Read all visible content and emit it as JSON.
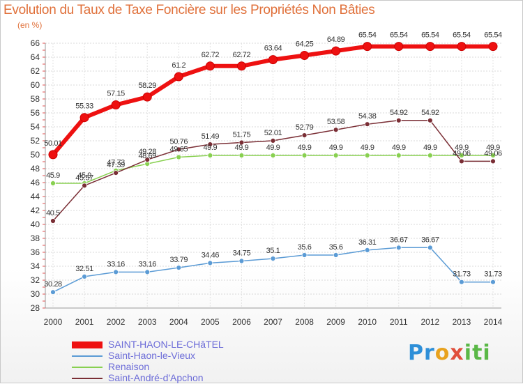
{
  "chart_data": {
    "type": "line",
    "title": "Evolution du Taux de Taxe Foncière sur les Propriétés Non Bâties",
    "subtitle": "(en %)",
    "x": [
      "2000",
      "2001",
      "2002",
      "2003",
      "2004",
      "2005",
      "2006",
      "2007",
      "2008",
      "2009",
      "2010",
      "2011",
      "2012",
      "2013",
      "2014"
    ],
    "ylim": [
      28,
      66
    ],
    "yticks": [
      28,
      30,
      32,
      34,
      36,
      38,
      40,
      42,
      44,
      46,
      48,
      50,
      52,
      54,
      56,
      58,
      60,
      62,
      64,
      66
    ],
    "grid": true,
    "series": [
      {
        "name": "SAINT-HAON-LE-CHâTEL",
        "color": "#ee1111",
        "values": [
          50.01,
          55.33,
          57.15,
          58.29,
          61.2,
          62.72,
          62.72,
          63.64,
          64.25,
          64.89,
          65.54,
          65.54,
          65.54,
          65.54,
          65.54
        ],
        "labels": [
          "50.01",
          "55.33",
          "57.15",
          "58.29",
          "61.2",
          "62.72",
          "62.72",
          "63.64",
          "64.25",
          "64.89",
          "65.54",
          "65.54",
          "65.54",
          "65.54",
          "65.54"
        ]
      },
      {
        "name": "Saint-Haon-le-Vieux",
        "color": "#5b9bd5",
        "values": [
          30.28,
          32.51,
          33.16,
          33.16,
          33.79,
          34.46,
          34.75,
          35.1,
          35.6,
          35.6,
          36.31,
          36.67,
          36.67,
          31.73,
          31.73
        ],
        "labels": [
          "30.28",
          "32.51",
          "33.16",
          "33.16",
          "33.79",
          "34.46",
          "34.75",
          "35.1",
          "35.6",
          "35.6",
          "36.31",
          "36.67",
          "36.67",
          "31.73",
          "31.73"
        ]
      },
      {
        "name": "Renaison",
        "color": "#88d050",
        "values": [
          45.9,
          45.9,
          47.73,
          48.69,
          49.65,
          49.9,
          49.9,
          49.9,
          49.9,
          49.9,
          49.9,
          49.9,
          49.9,
          49.9,
          49.9
        ],
        "labels": [
          "45.9",
          "45.9",
          "47.73",
          "48.69",
          "49.65",
          "49.9",
          "49.9",
          "49.9",
          "49.9",
          "49.9",
          "49.9",
          "49.9",
          "49.9",
          "49.9",
          "49.9"
        ]
      },
      {
        "name": "Saint-André-d'Apchon",
        "color": "#7a2e35",
        "values": [
          40.5,
          45.57,
          47.39,
          49.28,
          50.76,
          51.49,
          51.75,
          52.01,
          52.79,
          53.58,
          54.38,
          54.92,
          54.92,
          49.06,
          49.06
        ],
        "labels": [
          "40.5",
          "45.57",
          "47.39",
          "49.28",
          "50.76",
          "51.49",
          "51.75",
          "52.01",
          "52.79",
          "53.58",
          "54.38",
          "54.92",
          "54.92",
          "49.06",
          "49.06"
        ]
      }
    ],
    "legend_position": "bottom-left"
  },
  "logo": {
    "p1": "Pr",
    "p2": "o",
    "p3": "x",
    "p4": "iti"
  }
}
